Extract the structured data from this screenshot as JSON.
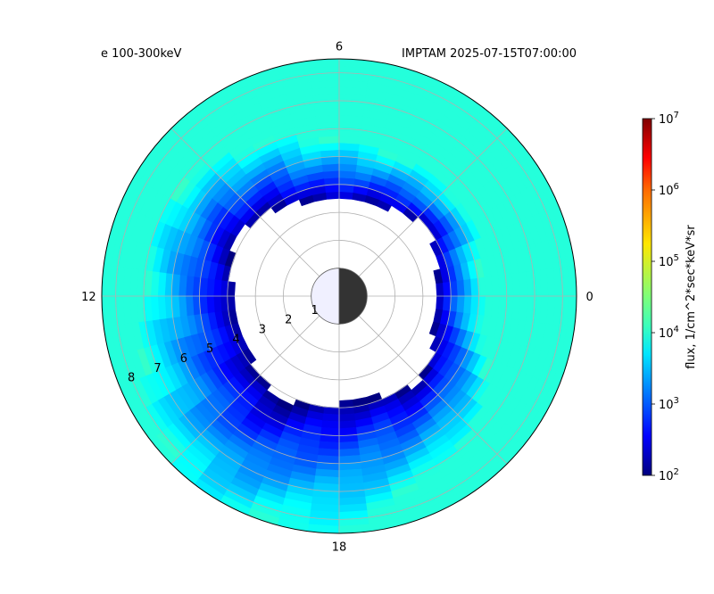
{
  "title_left": "e 100-300keV",
  "title_right": "IMPTAM 2025-07-15T07:00:00",
  "chart_data": {
    "type": "heatmap",
    "projection": "polar",
    "angular_axis": {
      "quantity": "MLT",
      "tick_labels": [
        "0",
        "6",
        "12",
        "18"
      ]
    },
    "radial_axis": {
      "tick_labels": [
        "1",
        "2",
        "3",
        "4",
        "5",
        "6",
        "7",
        "8"
      ],
      "range": [
        0,
        8.5
      ]
    },
    "earth": {
      "radius": 1,
      "day_side_color": "#f0f0ff",
      "night_side_color": "#333333"
    },
    "colorbar": {
      "label": "flux, 1/cm^2*sec*keV*sr",
      "scale": "log",
      "range": [
        100,
        10000000
      ],
      "tick_labels": [
        {
          "base": "10",
          "exp": "2"
        },
        {
          "base": "10",
          "exp": "3"
        },
        {
          "base": "10",
          "exp": "4"
        },
        {
          "base": "10",
          "exp": "5"
        },
        {
          "base": "10",
          "exp": "6"
        },
        {
          "base": "10",
          "exp": "7"
        }
      ],
      "colormap": "jet"
    },
    "field": {
      "outer_level_log10": 4.05,
      "inner_boundary_by_mlt": [
        [
          0,
          3.5
        ],
        [
          1,
          3.6
        ],
        [
          2,
          3.9
        ],
        [
          3,
          3.9
        ],
        [
          4,
          3.6
        ],
        [
          5,
          3.5
        ],
        [
          6,
          3.4
        ],
        [
          7,
          3.5
        ],
        [
          8,
          3.8
        ],
        [
          9,
          4.0
        ],
        [
          10,
          4.2
        ],
        [
          11,
          4.1
        ],
        [
          12,
          3.8
        ],
        [
          13,
          3.7
        ],
        [
          14,
          3.8
        ],
        [
          15,
          4.0
        ],
        [
          16,
          4.5
        ],
        [
          17,
          4.0
        ],
        [
          18,
          3.9
        ],
        [
          19,
          3.8
        ],
        [
          20,
          4.1
        ],
        [
          21,
          4.2
        ],
        [
          22,
          3.9
        ],
        [
          23,
          3.5
        ]
      ],
      "ramp_width_by_mlt": [
        [
          0,
          1.6
        ],
        [
          3,
          1.6
        ],
        [
          6,
          2.2
        ],
        [
          9,
          2.6
        ],
        [
          12,
          3.2
        ],
        [
          15,
          4.5
        ],
        [
          18,
          4.5
        ],
        [
          21,
          2.5
        ],
        [
          24,
          1.6
        ]
      ],
      "edge_level_log10": 2.05
    }
  }
}
